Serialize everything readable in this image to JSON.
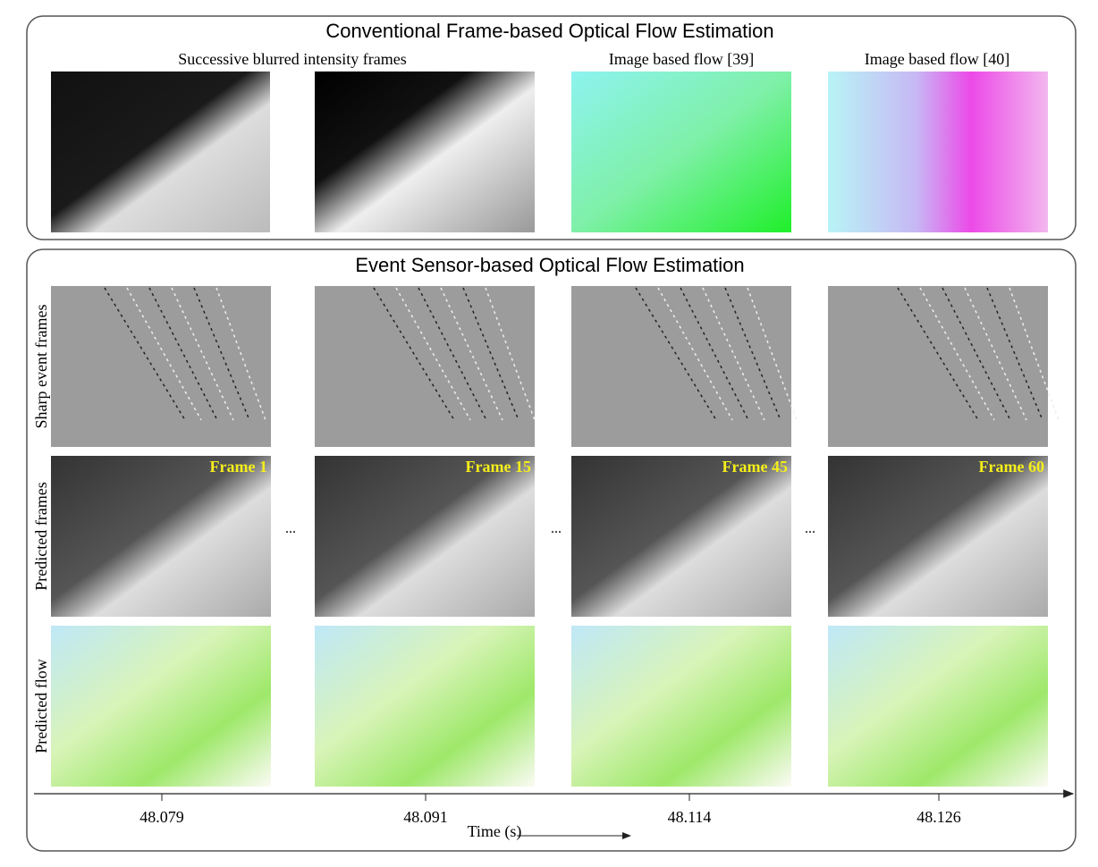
{
  "top_panel": {
    "title": "Conventional Frame-based Optical Flow Estimation",
    "image_labels": [
      "Successive blurred intensity frames",
      "Image based flow [39]",
      "Image based flow [40]"
    ]
  },
  "bottom_panel": {
    "title": "Event Sensor-based Optical Flow Estimation",
    "row_labels": [
      "Sharp event frames",
      "Predicted frames",
      "Predicted flow"
    ],
    "frame_labels": [
      "Frame 1",
      "Frame 15",
      "Frame 45",
      "Frame 60"
    ],
    "ellipses": [
      "...",
      "...",
      "..."
    ],
    "time_ticks": [
      "48.079",
      "48.091",
      "48.114",
      "48.126"
    ],
    "time_axis_label": "Time (s)"
  }
}
